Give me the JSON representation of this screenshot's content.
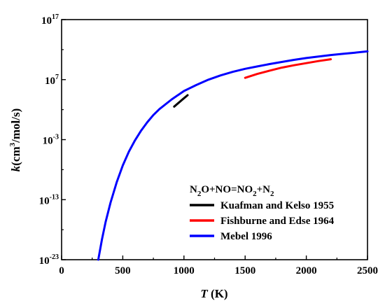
{
  "chart_data": {
    "type": "line",
    "xlabel": {
      "italic": "T",
      "rest": " (K)"
    },
    "ylabel": {
      "italic": "k",
      "base": "(cm",
      "sup": "3",
      "tail": "/mol/s)"
    },
    "xlim": [
      0,
      2500
    ],
    "ylim_exponent": [
      -23,
      17
    ],
    "yscale": "log",
    "x_ticks": [
      "0",
      "500",
      "1000",
      "1500",
      "2000",
      "2500"
    ],
    "y_ticks": [
      {
        "exp": -23,
        "base": "10",
        "sup": "-23"
      },
      {
        "exp": -13,
        "base": "10",
        "sup": "-13"
      },
      {
        "exp": -3,
        "base": "10",
        "sup": "-3"
      },
      {
        "exp": 7,
        "base": "10",
        "sup": "7"
      },
      {
        "exp": 17,
        "base": "10",
        "sup": "17"
      }
    ],
    "legend": {
      "title_parts": [
        {
          "t": "N",
          "sub": false
        },
        {
          "t": "2",
          "sub": true
        },
        {
          "t": "O+NO=NO",
          "sub": false
        },
        {
          "t": "2",
          "sub": true
        },
        {
          "t": "+N",
          "sub": false
        },
        {
          "t": "2",
          "sub": true
        }
      ],
      "placement": "bottom-right"
    },
    "series": [
      {
        "name": "Kuafman and Kelso 1955",
        "color": "#000000",
        "points": [
          [
            920,
            2.5
          ],
          [
            960,
            3.2
          ],
          [
            1000,
            3.9
          ],
          [
            1030,
            4.4
          ]
        ]
      },
      {
        "name": "Fishburne and Edse 1964",
        "color": "#ff0000",
        "points": [
          [
            1500,
            7.3
          ],
          [
            1600,
            7.95
          ],
          [
            1700,
            8.5
          ],
          [
            1800,
            9.0
          ],
          [
            1900,
            9.4
          ],
          [
            2000,
            9.75
          ],
          [
            2100,
            10.1
          ],
          [
            2200,
            10.4
          ]
        ]
      },
      {
        "name": "Mebel 1996",
        "color": "#0000ff",
        "points": [
          [
            300,
            -23.0
          ],
          [
            330,
            -19.6
          ],
          [
            360,
            -16.7
          ],
          [
            400,
            -13.5
          ],
          [
            450,
            -10.1
          ],
          [
            500,
            -7.3
          ],
          [
            550,
            -5.0
          ],
          [
            600,
            -3.1
          ],
          [
            650,
            -1.5
          ],
          [
            700,
            -0.1
          ],
          [
            750,
            1.1
          ],
          [
            800,
            2.1
          ],
          [
            900,
            3.7
          ],
          [
            1000,
            5.1
          ],
          [
            1100,
            6.1
          ],
          [
            1200,
            7.0
          ],
          [
            1300,
            7.7
          ],
          [
            1400,
            8.3
          ],
          [
            1500,
            8.8
          ],
          [
            1600,
            9.2
          ],
          [
            1700,
            9.6
          ],
          [
            1800,
            9.95
          ],
          [
            1900,
            10.3
          ],
          [
            2000,
            10.6
          ],
          [
            2100,
            10.85
          ],
          [
            2200,
            11.1
          ],
          [
            2300,
            11.3
          ],
          [
            2400,
            11.5
          ],
          [
            2500,
            11.7
          ]
        ]
      }
    ]
  }
}
